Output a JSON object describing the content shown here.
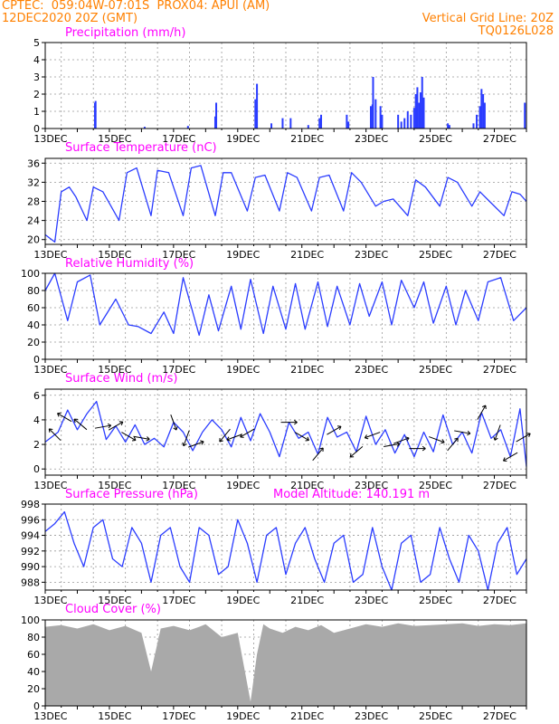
{
  "header": {
    "line1_left": "CPTEC:  059:04W-07:01S  PROX04: APUI (AM)",
    "line2_left": "12DEC2020 20Z (GMT)",
    "line2_right": "Vertical Grid Line: 20Z",
    "line3_right": "TQ0126L028"
  },
  "colors": {
    "header": "#ff8000",
    "title": "#ff00ff",
    "line": "#2a3cff",
    "cloud": "#a9a9a9",
    "grid": "#999999"
  },
  "x_axis_labels": [
    "13DEC",
    "15DEC",
    "17DEC",
    "19DEC",
    "21DEC",
    "23DEC",
    "25DEC",
    "27DEC"
  ],
  "chart_data": [
    {
      "id": "precip",
      "type": "bar",
      "title": "Precipitation (mm/h)",
      "ylim": [
        0,
        5
      ],
      "yticks": [
        0,
        1,
        2,
        3,
        4,
        5
      ],
      "note": "hourly precipitation from 12DEC2020 20Z to 27DEC2020 20Z",
      "x_start": 0.0,
      "x_step": 0.04167,
      "events": [
        {
          "day": 1.55,
          "value": 1.5
        },
        {
          "day": 1.57,
          "value": 1.6
        },
        {
          "day": 3.1,
          "value": 0.1
        },
        {
          "day": 4.45,
          "value": 0.15
        },
        {
          "day": 5.3,
          "value": 0.7
        },
        {
          "day": 5.33,
          "value": 1.5
        },
        {
          "day": 6.55,
          "value": 1.7
        },
        {
          "day": 6.6,
          "value": 2.6
        },
        {
          "day": 6.58,
          "value": 1.2
        },
        {
          "day": 7.05,
          "value": 0.3
        },
        {
          "day": 7.4,
          "value": 0.6
        },
        {
          "day": 7.65,
          "value": 0.6
        },
        {
          "day": 8.2,
          "value": 0.2
        },
        {
          "day": 8.55,
          "value": 0.6
        },
        {
          "day": 8.6,
          "value": 0.8
        },
        {
          "day": 9.4,
          "value": 0.8
        },
        {
          "day": 9.45,
          "value": 0.4
        },
        {
          "day": 10.15,
          "value": 1.3
        },
        {
          "day": 10.2,
          "value": 1.4
        },
        {
          "day": 10.22,
          "value": 3.0
        },
        {
          "day": 10.3,
          "value": 1.7
        },
        {
          "day": 10.45,
          "value": 1.3
        },
        {
          "day": 10.5,
          "value": 0.8
        },
        {
          "day": 11.0,
          "value": 0.8
        },
        {
          "day": 11.1,
          "value": 0.4
        },
        {
          "day": 11.2,
          "value": 0.6
        },
        {
          "day": 11.3,
          "value": 1.0
        },
        {
          "day": 11.4,
          "value": 0.8
        },
        {
          "day": 11.5,
          "value": 1.2
        },
        {
          "day": 11.55,
          "value": 2.0
        },
        {
          "day": 11.6,
          "value": 2.4
        },
        {
          "day": 11.65,
          "value": 1.5
        },
        {
          "day": 11.7,
          "value": 2.1
        },
        {
          "day": 11.75,
          "value": 3.0
        },
        {
          "day": 11.8,
          "value": 1.8
        },
        {
          "day": 12.55,
          "value": 0.3
        },
        {
          "day": 12.6,
          "value": 0.2
        },
        {
          "day": 13.35,
          "value": 0.3
        },
        {
          "day": 13.45,
          "value": 0.8
        },
        {
          "day": 13.55,
          "value": 1.3
        },
        {
          "day": 13.6,
          "value": 2.3
        },
        {
          "day": 13.65,
          "value": 2.0
        },
        {
          "day": 13.7,
          "value": 1.5
        },
        {
          "day": 14.95,
          "value": 1.5
        }
      ]
    },
    {
      "id": "temp",
      "type": "line",
      "title": "Surface Temperature (nC)",
      "ylim": [
        19,
        37
      ],
      "yticks": [
        20,
        24,
        28,
        32,
        36
      ],
      "x": [
        0,
        0.3,
        0.5,
        0.75,
        0.95,
        1.3,
        1.5,
        1.8,
        2.3,
        2.55,
        2.85,
        3.3,
        3.5,
        3.85,
        4.3,
        4.55,
        4.85,
        5.3,
        5.55,
        5.8,
        6.3,
        6.55,
        6.85,
        7.3,
        7.55,
        7.85,
        8.3,
        8.55,
        8.85,
        9.3,
        9.55,
        9.85,
        10.3,
        10.55,
        10.85,
        11.3,
        11.55,
        11.85,
        12.3,
        12.55,
        12.85,
        13.3,
        13.55,
        13.85,
        14.3,
        14.55,
        14.8,
        15.0
      ],
      "values": [
        21,
        19.5,
        30,
        31,
        29,
        24,
        31,
        30,
        24,
        34,
        35,
        25,
        34.5,
        34,
        25,
        35,
        35.5,
        25,
        34,
        34,
        26,
        33,
        33.5,
        26,
        34,
        33,
        26,
        33,
        33.5,
        26,
        34,
        32,
        27,
        28,
        28.5,
        25,
        32.5,
        31,
        27,
        33,
        32,
        27,
        30,
        28,
        25,
        30,
        29.5,
        28
      ]
    },
    {
      "id": "rh",
      "type": "line",
      "title": "Relative Humidity (%)",
      "ylim": [
        0,
        100
      ],
      "yticks": [
        0,
        20,
        40,
        60,
        80,
        100
      ],
      "x": [
        0,
        0.3,
        0.7,
        1.0,
        1.4,
        1.7,
        2.2,
        2.6,
        2.9,
        3.3,
        3.7,
        4.0,
        4.3,
        4.8,
        5.1,
        5.4,
        5.8,
        6.1,
        6.4,
        6.8,
        7.1,
        7.5,
        7.8,
        8.1,
        8.5,
        8.8,
        9.1,
        9.5,
        9.8,
        10.1,
        10.5,
        10.8,
        11.1,
        11.5,
        11.8,
        12.1,
        12.5,
        12.8,
        13.1,
        13.5,
        13.8,
        14.2,
        14.6,
        15.0
      ],
      "values": [
        80,
        100,
        45,
        90,
        98,
        40,
        70,
        40,
        38,
        30,
        55,
        30,
        95,
        28,
        75,
        33,
        85,
        35,
        93,
        30,
        85,
        35,
        88,
        35,
        90,
        38,
        85,
        40,
        88,
        50,
        90,
        40,
        92,
        60,
        90,
        42,
        85,
        40,
        80,
        45,
        90,
        95,
        45,
        60
      ]
    },
    {
      "id": "wind",
      "type": "line",
      "title": "Surface Wind (m/s)",
      "ylim": [
        -0.5,
        6.5
      ],
      "yticks": [
        0,
        2,
        4,
        6
      ],
      "x": [
        0,
        0.4,
        0.7,
        1.0,
        1.3,
        1.6,
        1.9,
        2.2,
        2.5,
        2.8,
        3.1,
        3.4,
        3.7,
        4.0,
        4.3,
        4.6,
        4.9,
        5.2,
        5.5,
        5.8,
        6.1,
        6.4,
        6.7,
        7.0,
        7.3,
        7.6,
        7.9,
        8.2,
        8.5,
        8.8,
        9.1,
        9.4,
        9.7,
        10.0,
        10.3,
        10.6,
        10.9,
        11.2,
        11.5,
        11.8,
        12.1,
        12.4,
        12.7,
        13.0,
        13.3,
        13.6,
        13.9,
        14.2,
        14.5,
        14.8,
        15.0
      ],
      "values": [
        2.2,
        3.0,
        4.8,
        3.2,
        4.5,
        5.5,
        2.4,
        3.5,
        2.2,
        3.6,
        2.0,
        2.5,
        1.8,
        3.8,
        3.0,
        1.5,
        3.0,
        4.0,
        3.2,
        1.8,
        4.2,
        2.3,
        4.5,
        3.0,
        1.0,
        3.8,
        2.5,
        3.0,
        1.2,
        4.2,
        2.6,
        3.0,
        1.4,
        4.3,
        2.0,
        3.2,
        1.3,
        2.8,
        1.0,
        3.0,
        1.4,
        4.4,
        2.0,
        3.0,
        1.3,
        4.6,
        2.5,
        3.2,
        1.0,
        4.9,
        0.2
      ],
      "arrows": [
        {
          "day": 0.3,
          "dir": 315
        },
        {
          "day": 0.6,
          "dir": 300
        },
        {
          "day": 1.1,
          "dir": 310
        },
        {
          "day": 1.8,
          "dir": 80
        },
        {
          "day": 2.2,
          "dir": 60
        },
        {
          "day": 2.6,
          "dir": 120
        },
        {
          "day": 3.0,
          "dir": 100
        },
        {
          "day": 4.0,
          "dir": 160
        },
        {
          "day": 4.4,
          "dir": 200
        },
        {
          "day": 4.7,
          "dir": 70
        },
        {
          "day": 5.6,
          "dir": 220
        },
        {
          "day": 5.9,
          "dir": 250
        },
        {
          "day": 6.3,
          "dir": 240
        },
        {
          "day": 7.6,
          "dir": 90
        },
        {
          "day": 8.0,
          "dir": 120
        },
        {
          "day": 8.5,
          "dir": 40
        },
        {
          "day": 9.0,
          "dir": 60
        },
        {
          "day": 9.7,
          "dir": 230
        },
        {
          "day": 10.2,
          "dir": 250
        },
        {
          "day": 10.8,
          "dir": 80
        },
        {
          "day": 11.1,
          "dir": 70
        },
        {
          "day": 11.6,
          "dir": 90
        },
        {
          "day": 12.2,
          "dir": 110
        },
        {
          "day": 12.7,
          "dir": 40
        },
        {
          "day": 13.0,
          "dir": 100
        },
        {
          "day": 13.6,
          "dir": 30
        },
        {
          "day": 14.1,
          "dir": 200
        },
        {
          "day": 14.5,
          "dir": 240
        },
        {
          "day": 14.9,
          "dir": 60
        }
      ]
    },
    {
      "id": "pres",
      "type": "line",
      "title": "Surface Pressure (hPa)",
      "subtitle": "Model Altitude: 140.191 m",
      "ylim": [
        987,
        998
      ],
      "yticks": [
        988,
        990,
        992,
        994,
        996,
        998
      ],
      "x": [
        0,
        0.3,
        0.6,
        0.9,
        1.2,
        1.5,
        1.8,
        2.1,
        2.4,
        2.7,
        3.0,
        3.3,
        3.6,
        3.9,
        4.2,
        4.5,
        4.8,
        5.1,
        5.4,
        5.7,
        6.0,
        6.3,
        6.6,
        6.9,
        7.2,
        7.5,
        7.8,
        8.1,
        8.4,
        8.7,
        9.0,
        9.3,
        9.6,
        9.9,
        10.2,
        10.5,
        10.8,
        11.1,
        11.4,
        11.7,
        12.0,
        12.3,
        12.6,
        12.9,
        13.2,
        13.5,
        13.8,
        14.1,
        14.4,
        14.7,
        15.0
      ],
      "values": [
        994.5,
        995.5,
        997,
        993,
        990,
        995,
        996,
        991,
        990,
        995,
        993,
        988,
        994,
        995,
        990,
        988,
        995,
        994,
        989,
        990,
        996,
        993,
        988,
        994,
        995,
        989,
        993,
        995,
        991,
        988,
        993,
        994,
        988,
        989,
        995,
        990,
        987,
        993,
        994,
        988,
        989,
        995,
        991,
        988,
        994,
        992,
        987,
        993,
        995,
        989,
        991
      ]
    },
    {
      "id": "cloud",
      "type": "area",
      "title": "Cloud Cover (%)",
      "ylim": [
        0,
        100
      ],
      "yticks": [
        0,
        20,
        40,
        60,
        80,
        100
      ],
      "x": [
        0,
        0.5,
        1.0,
        1.5,
        2.0,
        2.5,
        3.0,
        3.3,
        3.6,
        4.0,
        4.5,
        4.8,
        5.0,
        5.5,
        6.0,
        6.4,
        6.6,
        6.8,
        7.0,
        7.4,
        7.8,
        8.2,
        8.6,
        9.0,
        9.5,
        10.0,
        10.5,
        11.0,
        11.5,
        12.0,
        12.5,
        13.0,
        13.5,
        14.0,
        14.5,
        15.0
      ],
      "values": [
        92,
        94,
        90,
        95,
        88,
        93,
        85,
        40,
        90,
        93,
        88,
        92,
        95,
        80,
        85,
        5,
        60,
        95,
        90,
        85,
        92,
        88,
        94,
        85,
        90,
        95,
        92,
        96,
        93,
        94,
        95,
        96,
        93,
        95,
        94,
        96
      ]
    }
  ]
}
